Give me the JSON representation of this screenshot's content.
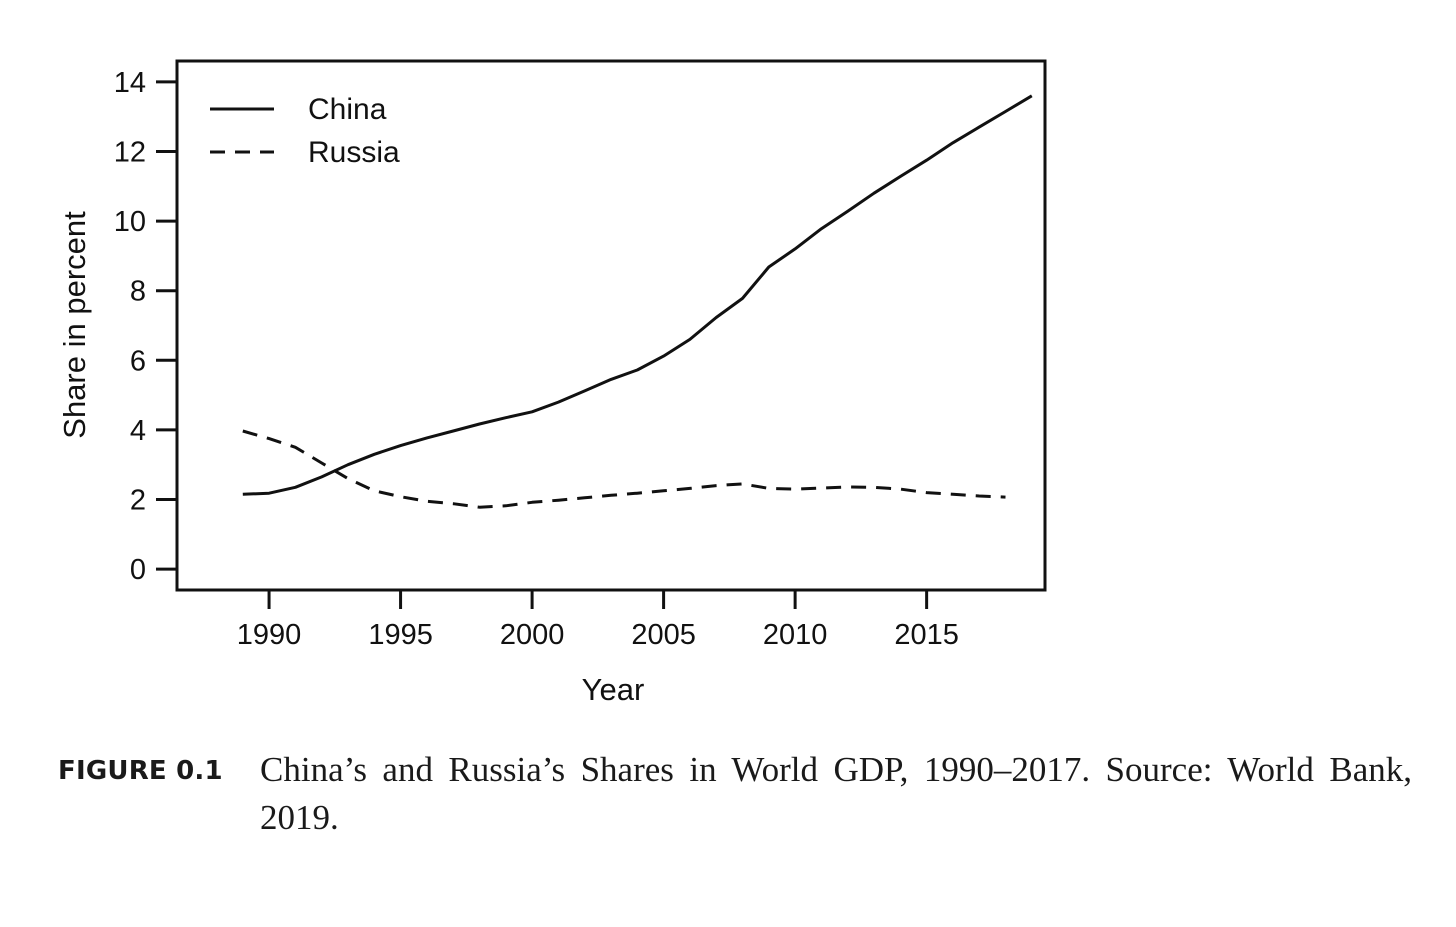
{
  "chart_data": {
    "type": "line",
    "title": "",
    "xlabel": "Year",
    "ylabel": "Share in percent",
    "xlim": [
      1986.5,
      2019.5
    ],
    "ylim": [
      -0.6,
      14.6
    ],
    "xticks": [
      1990,
      1995,
      2000,
      2005,
      2010,
      2015
    ],
    "yticks": [
      0,
      2,
      4,
      6,
      8,
      10,
      12,
      14
    ],
    "grid": false,
    "legend_position": "top-left",
    "series": [
      {
        "name": "China",
        "style": "solid",
        "color": "#111111",
        "x": [
          1989,
          1990,
          1991,
          1992,
          1993,
          1994,
          1995,
          1996,
          1997,
          1998,
          1999,
          2000,
          2001,
          2002,
          2003,
          2004,
          2005,
          2006,
          2007,
          2008,
          2009,
          2010,
          2011,
          2012,
          2013,
          2014,
          2015,
          2016,
          2017,
          2018,
          2019
        ],
        "values": [
          2.15,
          2.18,
          2.35,
          2.65,
          3.0,
          3.3,
          3.55,
          3.77,
          3.97,
          4.17,
          4.35,
          4.52,
          4.8,
          5.12,
          5.45,
          5.72,
          6.12,
          6.6,
          7.23,
          7.78,
          8.68,
          9.2,
          9.78,
          10.28,
          10.8,
          11.28,
          11.75,
          12.25,
          12.7,
          13.15,
          13.6
        ]
      },
      {
        "name": "Russia",
        "style": "dashed",
        "color": "#111111",
        "x": [
          1989,
          1990,
          1991,
          1992,
          1993,
          1994,
          1995,
          1996,
          1997,
          1998,
          1999,
          2000,
          2001,
          2002,
          2003,
          2004,
          2005,
          2006,
          2007,
          2008,
          2009,
          2010,
          2011,
          2012,
          2013,
          2014,
          2015,
          2016,
          2017,
          2018
        ],
        "values": [
          3.97,
          3.75,
          3.5,
          3.05,
          2.6,
          2.25,
          2.08,
          1.95,
          1.88,
          1.78,
          1.82,
          1.92,
          1.98,
          2.05,
          2.12,
          2.18,
          2.25,
          2.32,
          2.4,
          2.45,
          2.32,
          2.3,
          2.33,
          2.36,
          2.35,
          2.3,
          2.2,
          2.15,
          2.1,
          2.07
        ]
      }
    ]
  },
  "caption": {
    "label": "FIGURE 0.1",
    "text": "China’s and Russia’s Shares in World GDP, 1990–2017.  Source: World Bank, 2019."
  }
}
